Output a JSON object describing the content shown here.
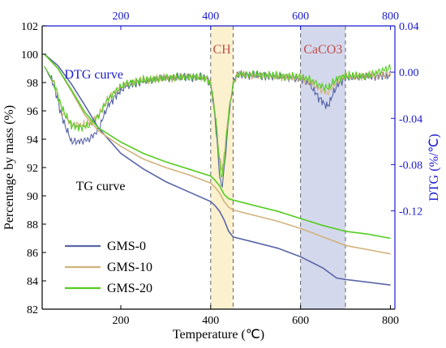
{
  "chart_data": {
    "type": "line",
    "xlabel": "Temperature (℃)",
    "ylabel": "Percentage by mass (%)",
    "y2label": "DTG (%/℃)",
    "xlim": [
      25,
      810
    ],
    "ylim": [
      82,
      102
    ],
    "y2lim": [
      -0.205,
      0.04
    ],
    "x_ticks": [
      200,
      400,
      600,
      800
    ],
    "y_ticks": [
      82,
      84,
      86,
      88,
      90,
      92,
      94,
      96,
      98,
      100,
      102
    ],
    "y2_ticks": [
      0.04,
      0.0,
      -0.04,
      -0.08,
      -0.12
    ],
    "y2_tick_labels": [
      "0.04",
      "0.00",
      "-0.04",
      "-0.08",
      "-0.12"
    ],
    "colors": {
      "GMS-0": "#5a66a8",
      "GMS-10": "#d2b27c",
      "GMS-20": "#55cc22",
      "right_axis": "#1a1acc",
      "ch_band": "#fbf1cf",
      "caco3_band": "#d4d8ec",
      "band_label": "#c0504d"
    },
    "regions": [
      {
        "label": "CH",
        "x_start": 400,
        "x_end": 450
      },
      {
        "label": "CaCO3",
        "x_start": 600,
        "x_end": 700
      }
    ],
    "annotations": [
      {
        "text": "DTG curve",
        "x": 140,
        "y": 98.3,
        "color": "#1a1acc"
      },
      {
        "text": "TG curve",
        "x": 155,
        "y": 90.4,
        "color": "#000000"
      }
    ],
    "legend": {
      "position": "bottom-left",
      "entries": [
        "GMS-0",
        "GMS-10",
        "GMS-20"
      ]
    },
    "tg_series": [
      {
        "name": "GMS-0",
        "x": [
          30,
          60,
          90,
          120,
          150,
          200,
          250,
          300,
          350,
          400,
          410,
          420,
          430,
          440,
          450,
          500,
          550,
          600,
          650,
          680,
          700,
          750,
          800
        ],
        "y": [
          100,
          99.2,
          97.9,
          96.4,
          94.8,
          93.0,
          91.9,
          91.0,
          90.3,
          89.6,
          89.3,
          88.9,
          88.3,
          87.5,
          87.1,
          86.7,
          86.3,
          85.7,
          84.9,
          84.2,
          84.1,
          83.9,
          83.7
        ]
      },
      {
        "name": "GMS-10",
        "x": [
          30,
          60,
          90,
          120,
          150,
          200,
          250,
          300,
          350,
          400,
          410,
          420,
          430,
          440,
          450,
          500,
          550,
          600,
          650,
          700,
          750,
          800
        ],
        "y": [
          100,
          99.0,
          97.4,
          95.7,
          94.6,
          93.5,
          92.6,
          92.0,
          91.5,
          90.9,
          90.6,
          90.2,
          89.6,
          89.2,
          89.0,
          88.6,
          88.2,
          87.7,
          87.1,
          86.5,
          86.2,
          85.9
        ]
      },
      {
        "name": "GMS-20",
        "x": [
          30,
          60,
          90,
          120,
          150,
          200,
          250,
          300,
          350,
          400,
          410,
          420,
          430,
          440,
          450,
          500,
          550,
          600,
          650,
          700,
          750,
          800
        ],
        "y": [
          100,
          99.0,
          97.5,
          95.9,
          94.8,
          93.8,
          93.0,
          92.4,
          91.9,
          91.4,
          91.1,
          90.7,
          90.1,
          89.8,
          89.7,
          89.3,
          88.9,
          88.4,
          87.9,
          87.5,
          87.3,
          87.0
        ]
      }
    ],
    "dtg_series": [
      {
        "name": "GMS-0",
        "x": [
          30,
          50,
          70,
          90,
          110,
          130,
          150,
          170,
          190,
          210,
          250,
          300,
          350,
          390,
          400,
          410,
          420,
          425,
          430,
          440,
          450,
          460,
          500,
          550,
          600,
          620,
          640,
          660,
          680,
          700,
          750,
          800
        ],
        "y": [
          0.005,
          -0.01,
          -0.04,
          -0.06,
          -0.06,
          -0.058,
          -0.05,
          -0.03,
          -0.02,
          -0.012,
          -0.008,
          -0.005,
          -0.004,
          -0.005,
          -0.01,
          -0.04,
          -0.09,
          -0.1,
          -0.085,
          -0.04,
          -0.01,
          -0.002,
          -0.003,
          -0.004,
          -0.006,
          -0.01,
          -0.022,
          -0.03,
          -0.012,
          -0.005,
          -0.004,
          -0.003
        ]
      },
      {
        "name": "GMS-10",
        "x": [
          30,
          50,
          70,
          90,
          110,
          130,
          150,
          170,
          190,
          210,
          250,
          300,
          350,
          390,
          400,
          410,
          420,
          425,
          430,
          440,
          450,
          460,
          500,
          550,
          600,
          620,
          640,
          660,
          680,
          700,
          750,
          800
        ],
        "y": [
          0.005,
          -0.008,
          -0.035,
          -0.045,
          -0.046,
          -0.044,
          -0.038,
          -0.024,
          -0.016,
          -0.01,
          -0.007,
          -0.005,
          -0.004,
          -0.005,
          -0.01,
          -0.035,
          -0.075,
          -0.085,
          -0.072,
          -0.035,
          -0.01,
          -0.002,
          -0.003,
          -0.004,
          -0.005,
          -0.008,
          -0.014,
          -0.018,
          -0.008,
          -0.004,
          -0.003,
          -0.002
        ]
      },
      {
        "name": "GMS-20",
        "x": [
          30,
          50,
          70,
          90,
          110,
          130,
          150,
          170,
          190,
          210,
          250,
          300,
          350,
          390,
          400,
          410,
          420,
          425,
          430,
          440,
          450,
          460,
          500,
          550,
          600,
          620,
          640,
          660,
          680,
          700,
          750,
          800
        ],
        "y": [
          0.005,
          -0.008,
          -0.032,
          -0.046,
          -0.048,
          -0.046,
          -0.038,
          -0.024,
          -0.016,
          -0.01,
          -0.007,
          -0.005,
          -0.004,
          -0.005,
          -0.01,
          -0.035,
          -0.08,
          -0.092,
          -0.078,
          -0.035,
          -0.01,
          -0.002,
          -0.002,
          -0.003,
          -0.004,
          -0.006,
          -0.011,
          -0.014,
          -0.006,
          -0.003,
          -0.003,
          0.004
        ]
      }
    ]
  }
}
